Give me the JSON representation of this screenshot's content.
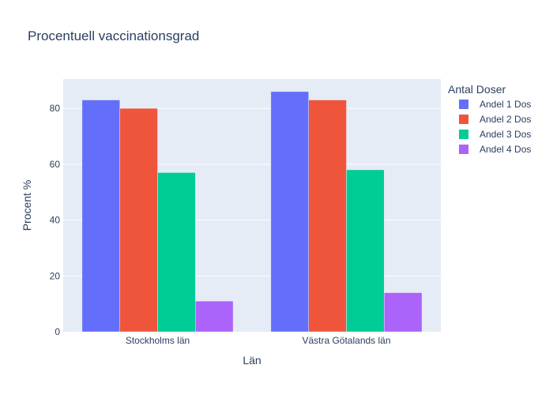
{
  "chart_data": {
    "type": "bar",
    "title": "Procentuell vaccinationsgrad",
    "xlabel": "Län",
    "ylabel": "Procent %",
    "categories": [
      "Stockholms län",
      "Västra Götalands län"
    ],
    "series": [
      {
        "name": "Andel 1 Dos",
        "values": [
          83,
          86
        ],
        "color": "#636efa"
      },
      {
        "name": "Andel 2 Dos",
        "values": [
          80,
          83
        ],
        "color": "#ef553b"
      },
      {
        "name": "Andel 3 Dos",
        "values": [
          57,
          58
        ],
        "color": "#00cc96"
      },
      {
        "name": "Andel 4 Dos",
        "values": [
          11,
          14
        ],
        "color": "#ab63fa"
      }
    ],
    "ylim": [
      0,
      90.5
    ],
    "yticks": [
      0,
      20,
      40,
      60,
      80
    ],
    "grid": true,
    "plot_background": "#e5ecf6",
    "legend": {
      "title": "Antal Doser",
      "position": "right"
    }
  }
}
